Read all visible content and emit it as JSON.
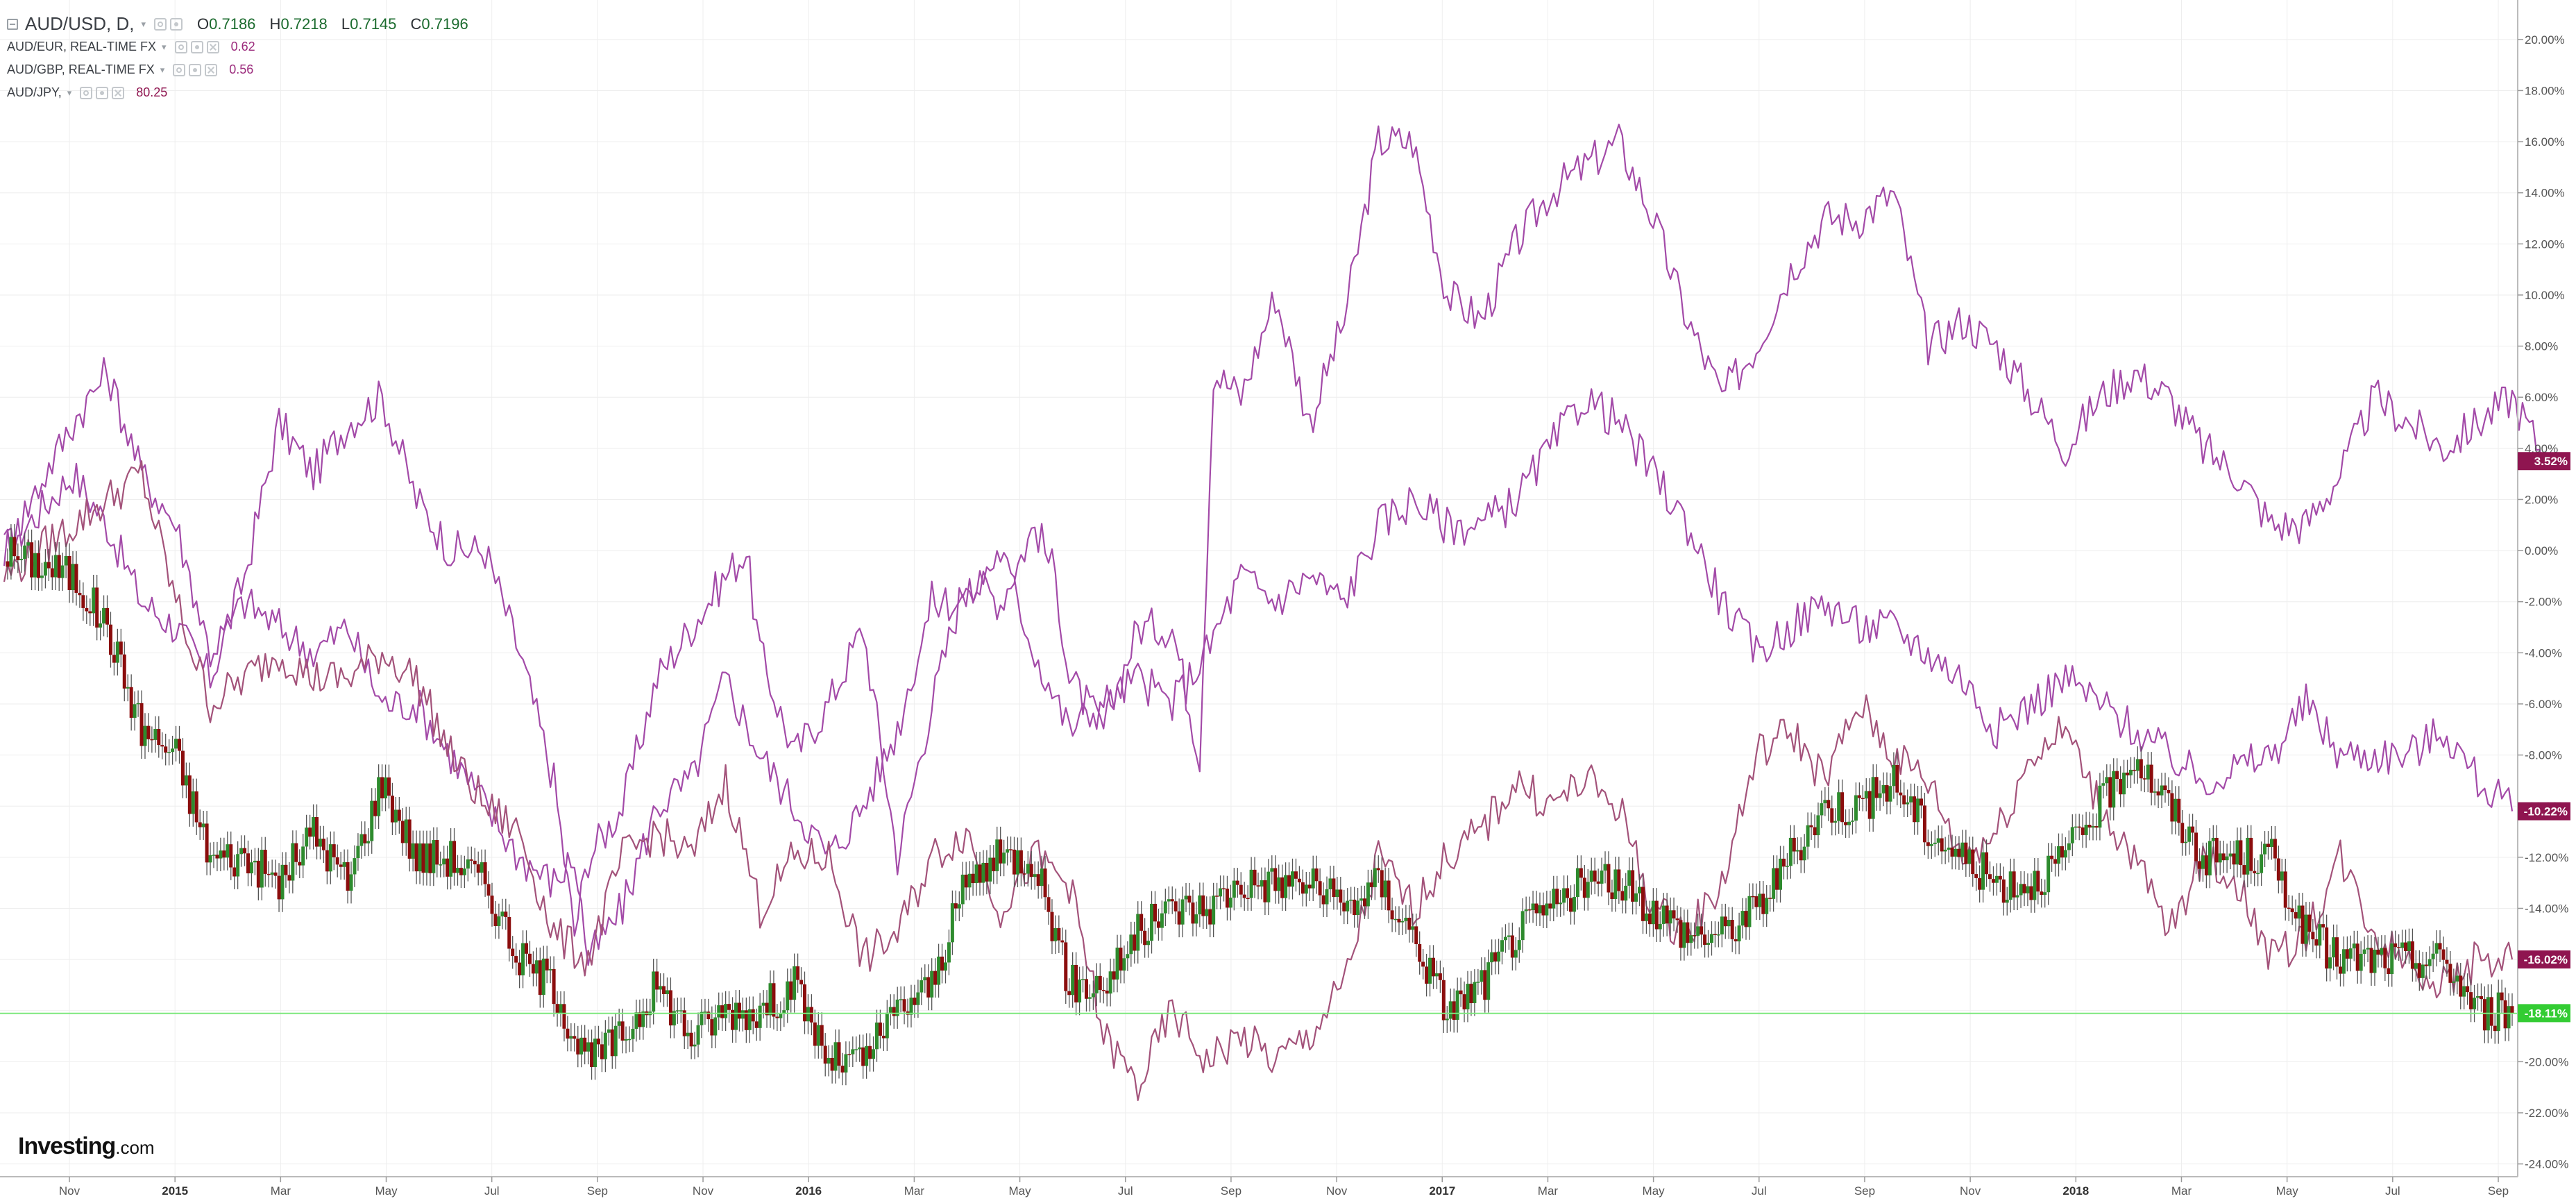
{
  "legend": {
    "main_symbol": "AUD/USD, D,",
    "ohlc": {
      "o_label": "O",
      "o": "0.7186",
      "h_label": "H",
      "h": "0.7218",
      "l_label": "L",
      "l": "0.7145",
      "c_label": "C",
      "c": "0.7196"
    },
    "compare": [
      {
        "symbol": "AUD/EUR, REAL-TIME FX",
        "value": "0.62",
        "color": "#9b2a7c"
      },
      {
        "symbol": "AUD/GBP, REAL-TIME FX",
        "value": "0.56",
        "color": "#9b2a7c"
      },
      {
        "symbol": "AUD/JPY,",
        "value": "80.25",
        "color": "#8f1550"
      }
    ]
  },
  "logo": {
    "text": "Investing",
    "suffix": ".com"
  },
  "colors": {
    "up": "#2e8b2e",
    "down": "#8b0d0d",
    "wick": "#555555",
    "jpy_line": "#a34aa8",
    "gbp_line": "#a34aa8",
    "eur_line": "#a3527a",
    "baseline": "#7de87d",
    "grid": "#eeeeee",
    "axis_text": "#555555"
  },
  "chart_data": {
    "type": "line",
    "scale": "percent-change",
    "x_ticks": [
      "Nov",
      "2015",
      "Mar",
      "May",
      "Jul",
      "Sep",
      "Nov",
      "2016",
      "Mar",
      "May",
      "Jul",
      "Sep",
      "Nov",
      "2017",
      "Mar",
      "May",
      "Jul",
      "Sep",
      "Nov",
      "2018",
      "Mar",
      "May",
      "Jul",
      "Sep"
    ],
    "y_ticks": [
      "20.00%",
      "18.00%",
      "16.00%",
      "14.00%",
      "12.00%",
      "10.00%",
      "8.00%",
      "6.00%",
      "4.00%",
      "2.00%",
      "0.00%",
      "-2.00%",
      "-4.00%",
      "-6.00%",
      "-8.00%",
      "-10.00%",
      "-12.00%",
      "-14.00%",
      "-16.00%",
      "-18.00%",
      "-20.00%",
      "-22.00%",
      "-24.00%"
    ],
    "ylim": [
      -24.5,
      21
    ],
    "baseline_value": -18.11,
    "series": [
      {
        "key": "AUD/JPY",
        "style": "line",
        "last_label": "3.52%",
        "label_color": "#8f1550",
        "points": [
          [
            0,
            0
          ],
          [
            1,
            3
          ],
          [
            1.5,
            1
          ],
          [
            2,
            -2
          ],
          [
            2.5,
            -3
          ],
          [
            3,
            -5
          ],
          [
            3.5,
            -1
          ],
          [
            4,
            5
          ],
          [
            4.5,
            3
          ],
          [
            5,
            5
          ],
          [
            5.5,
            6
          ],
          [
            6,
            2
          ],
          [
            6.5,
            0
          ],
          [
            7,
            0
          ],
          [
            7.5,
            -4
          ],
          [
            8,
            -9
          ],
          [
            8.3,
            -15
          ],
          [
            8.5,
            -12
          ],
          [
            9,
            -10
          ],
          [
            9.5,
            -5
          ],
          [
            10,
            -3
          ],
          [
            10.5,
            -1
          ],
          [
            10.8,
            0
          ],
          [
            11,
            -4
          ],
          [
            11.5,
            -8
          ],
          [
            12,
            -6
          ],
          [
            12.5,
            -3
          ],
          [
            13,
            -12
          ],
          [
            13.5,
            -6
          ],
          [
            14,
            -1
          ],
          [
            14.5,
            -2
          ],
          [
            15,
            1
          ],
          [
            15.3,
            -1
          ],
          [
            15.5,
            -5
          ],
          [
            16,
            -7
          ],
          [
            16.5,
            -3
          ],
          [
            17,
            -3
          ],
          [
            17.4,
            -8
          ],
          [
            17.6,
            7
          ],
          [
            18,
            6
          ],
          [
            18.5,
            10
          ],
          [
            19,
            5
          ],
          [
            19.5,
            9
          ],
          [
            20,
            16
          ],
          [
            20.5,
            16
          ],
          [
            21,
            10
          ],
          [
            21.5,
            9
          ],
          [
            22,
            12
          ],
          [
            22.5,
            14
          ],
          [
            23,
            15
          ],
          [
            23.5,
            16
          ],
          [
            24,
            13
          ],
          [
            24.5,
            9
          ],
          [
            25,
            6
          ],
          [
            25.5,
            8
          ],
          [
            26,
            11
          ],
          [
            26.5,
            13
          ],
          [
            27,
            13
          ],
          [
            27.5,
            14
          ],
          [
            28,
            8
          ],
          [
            28.5,
            9
          ],
          [
            29,
            8
          ],
          [
            29.5,
            6
          ],
          [
            30,
            4
          ],
          [
            30.5,
            6
          ],
          [
            31,
            7
          ],
          [
            31.5,
            6
          ],
          [
            32,
            4
          ],
          [
            32.5,
            3
          ],
          [
            33,
            1
          ],
          [
            33.5,
            1
          ],
          [
            34,
            3
          ],
          [
            34.5,
            6
          ],
          [
            35,
            5
          ],
          [
            35.5,
            4
          ],
          [
            36,
            5
          ],
          [
            36.5,
            6
          ],
          [
            37,
            3.5
          ]
        ]
      },
      {
        "key": "AUD/GBP",
        "style": "line",
        "last_label": "-10.22%",
        "label_color": "#8f1550",
        "points": [
          [
            0,
            0
          ],
          [
            1,
            5
          ],
          [
            1.5,
            7
          ],
          [
            2,
            3
          ],
          [
            2.5,
            1
          ],
          [
            3,
            -4
          ],
          [
            3.5,
            -2
          ],
          [
            4,
            -3
          ],
          [
            4.5,
            -4
          ],
          [
            5,
            -3
          ],
          [
            5.5,
            -6
          ],
          [
            6,
            -6
          ],
          [
            6.5,
            -8
          ],
          [
            7,
            -10
          ],
          [
            7.5,
            -12
          ],
          [
            8,
            -13
          ],
          [
            8.3,
            -12
          ],
          [
            8.5,
            -16
          ],
          [
            9,
            -14
          ],
          [
            9.5,
            -10
          ],
          [
            10,
            -9
          ],
          [
            10.5,
            -5
          ],
          [
            11,
            -8
          ],
          [
            11.5,
            -10
          ],
          [
            12,
            -12
          ],
          [
            12.5,
            -10
          ],
          [
            13,
            -7
          ],
          [
            13.5,
            -2
          ],
          [
            14,
            -2
          ],
          [
            14.5,
            0
          ],
          [
            15,
            -4
          ],
          [
            15.5,
            -7
          ],
          [
            16,
            -6
          ],
          [
            16.5,
            -5
          ],
          [
            17,
            -6
          ],
          [
            17.5,
            -4
          ],
          [
            18,
            -1
          ],
          [
            18.5,
            -2
          ],
          [
            19,
            -1
          ],
          [
            19.5,
            -2
          ],
          [
            20,
            1
          ],
          [
            20.5,
            2
          ],
          [
            21,
            1
          ],
          [
            21.5,
            1
          ],
          [
            22,
            2
          ],
          [
            22.5,
            4
          ],
          [
            23,
            6
          ],
          [
            23.5,
            5
          ],
          [
            24,
            3
          ],
          [
            24.5,
            1
          ],
          [
            25,
            -2
          ],
          [
            25.5,
            -4
          ],
          [
            26,
            -3
          ],
          [
            26.5,
            -2
          ],
          [
            27,
            -3
          ],
          [
            27.5,
            -3
          ],
          [
            28,
            -4
          ],
          [
            28.5,
            -5
          ],
          [
            29,
            -7
          ],
          [
            29.5,
            -6
          ],
          [
            30,
            -5
          ],
          [
            30.5,
            -6
          ],
          [
            31,
            -7
          ],
          [
            31.5,
            -8
          ],
          [
            32,
            -9
          ],
          [
            33,
            -8
          ],
          [
            33.5,
            -6
          ],
          [
            34,
            -8
          ],
          [
            35,
            -8
          ],
          [
            35.5,
            -7
          ],
          [
            36,
            -9
          ],
          [
            36.5,
            -10.2
          ]
        ]
      },
      {
        "key": "AUD/EUR",
        "style": "line",
        "last_label": "-16.02%",
        "label_color": "#8f1550",
        "points": [
          [
            0,
            -1
          ],
          [
            1,
            1
          ],
          [
            2,
            3
          ],
          [
            2.5,
            -2
          ],
          [
            3,
            -6
          ],
          [
            3.5,
            -5
          ],
          [
            4,
            -4
          ],
          [
            4.5,
            -5
          ],
          [
            5,
            -5
          ],
          [
            5.5,
            -4
          ],
          [
            6,
            -5
          ],
          [
            6.5,
            -8
          ],
          [
            7,
            -10
          ],
          [
            7.5,
            -11
          ],
          [
            8,
            -15
          ],
          [
            8.5,
            -16
          ],
          [
            9,
            -12
          ],
          [
            9.5,
            -11
          ],
          [
            10,
            -12
          ],
          [
            10.5,
            -9
          ],
          [
            11,
            -14
          ],
          [
            11.5,
            -12
          ],
          [
            12,
            -12
          ],
          [
            12.5,
            -16
          ],
          [
            13,
            -15
          ],
          [
            13.5,
            -12
          ],
          [
            14,
            -11
          ],
          [
            14.5,
            -14
          ],
          [
            15,
            -12
          ],
          [
            15.5,
            -13
          ],
          [
            16,
            -19
          ],
          [
            16.5,
            -21
          ],
          [
            17,
            -18
          ],
          [
            17.5,
            -20
          ],
          [
            18,
            -19
          ],
          [
            18.5,
            -20
          ],
          [
            19,
            -19
          ],
          [
            19.5,
            -17
          ],
          [
            20,
            -12
          ],
          [
            20.5,
            -14
          ],
          [
            21,
            -12
          ],
          [
            21.5,
            -11
          ],
          [
            22,
            -9
          ],
          [
            22.5,
            -10
          ],
          [
            23,
            -9
          ],
          [
            23.5,
            -10
          ],
          [
            24,
            -14
          ],
          [
            24.5,
            -15
          ],
          [
            25,
            -13
          ],
          [
            25.5,
            -8
          ],
          [
            26,
            -7
          ],
          [
            26.5,
            -9
          ],
          [
            27,
            -6
          ],
          [
            27.5,
            -8
          ],
          [
            28,
            -9
          ],
          [
            28.5,
            -12
          ],
          [
            29,
            -11
          ],
          [
            29.5,
            -8
          ],
          [
            30,
            -7
          ],
          [
            30.5,
            -10
          ],
          [
            31,
            -12
          ],
          [
            31.5,
            -15
          ],
          [
            32,
            -12
          ],
          [
            32.5,
            -13
          ],
          [
            33,
            -16
          ],
          [
            33.5,
            -15
          ],
          [
            34,
            -12
          ],
          [
            34.5,
            -15
          ],
          [
            35,
            -16
          ],
          [
            35.5,
            -17
          ],
          [
            36,
            -16
          ],
          [
            36.5,
            -16
          ]
        ]
      },
      {
        "key": "AUD/USD",
        "style": "candles",
        "last_label": "-18.11%",
        "label_color": "#33cc33",
        "points": [
          [
            0,
            0
          ],
          [
            1,
            -1
          ],
          [
            1.5,
            -3
          ],
          [
            2,
            -7
          ],
          [
            2.5,
            -8
          ],
          [
            3,
            -12
          ],
          [
            3.5,
            -12
          ],
          [
            4,
            -13
          ],
          [
            4.5,
            -11
          ],
          [
            5,
            -13
          ],
          [
            5.5,
            -9
          ],
          [
            6,
            -12
          ],
          [
            6.5,
            -12
          ],
          [
            7,
            -13
          ],
          [
            7.5,
            -16
          ],
          [
            8,
            -17
          ],
          [
            8.3,
            -19
          ],
          [
            8.5,
            -20
          ],
          [
            9,
            -19
          ],
          [
            9.5,
            -17
          ],
          [
            10,
            -19
          ],
          [
            10.5,
            -18
          ],
          [
            11,
            -18
          ],
          [
            11.5,
            -17
          ],
          [
            12,
            -20
          ],
          [
            12.5,
            -20
          ],
          [
            13,
            -18
          ],
          [
            13.5,
            -17
          ],
          [
            14,
            -13
          ],
          [
            14.5,
            -12
          ],
          [
            15,
            -12
          ],
          [
            15.5,
            -17
          ],
          [
            16,
            -17
          ],
          [
            16.5,
            -15
          ],
          [
            17,
            -14
          ],
          [
            17.5,
            -14
          ],
          [
            18,
            -13
          ],
          [
            18.5,
            -13
          ],
          [
            19,
            -13
          ],
          [
            19.5,
            -14
          ],
          [
            20,
            -13
          ],
          [
            20.5,
            -15
          ],
          [
            21,
            -18
          ],
          [
            21.5,
            -17
          ],
          [
            22,
            -15
          ],
          [
            22.5,
            -14
          ],
          [
            23,
            -13
          ],
          [
            23.5,
            -13
          ],
          [
            24,
            -14
          ],
          [
            24.5,
            -15
          ],
          [
            25,
            -15
          ],
          [
            25.5,
            -14
          ],
          [
            26,
            -12
          ],
          [
            26.5,
            -10
          ],
          [
            27,
            -10
          ],
          [
            27.5,
            -9
          ],
          [
            28,
            -11
          ],
          [
            28.5,
            -12
          ],
          [
            29,
            -13
          ],
          [
            29.5,
            -13
          ],
          [
            30,
            -12
          ],
          [
            30.5,
            -10
          ],
          [
            31,
            -8
          ],
          [
            31.5,
            -10
          ],
          [
            32,
            -12
          ],
          [
            32.5,
            -12
          ],
          [
            33,
            -12
          ],
          [
            33.5,
            -15
          ],
          [
            34,
            -16
          ],
          [
            34.5,
            -16
          ],
          [
            35,
            -16
          ],
          [
            35.5,
            -16
          ],
          [
            36,
            -18
          ],
          [
            36.5,
            -18.1
          ]
        ]
      }
    ]
  }
}
